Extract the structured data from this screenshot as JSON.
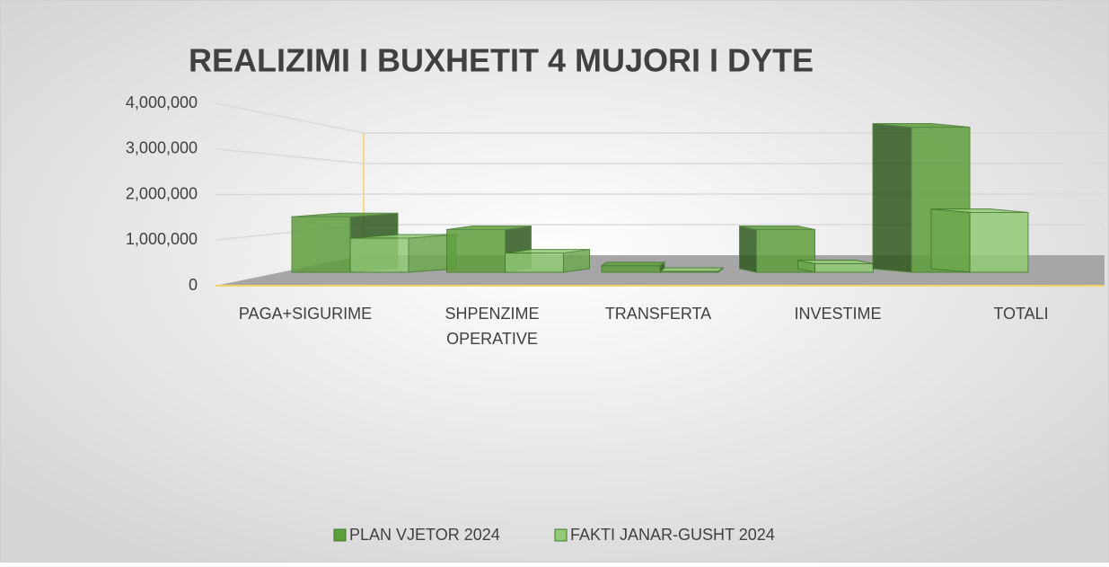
{
  "chart_data": {
    "type": "bar3d",
    "title": "REALIZIMI  I  BUXHETIT 4 MUJORI I DYTE",
    "categories": [
      "PAGA+SIGURIME",
      "SHPENZIME OPERATIVE",
      "TRANSFERTA",
      "INVESTIME",
      "TOTALI"
    ],
    "series": [
      {
        "name": "PLAN VJETOR 2024",
        "color": "#5f9e3c",
        "values": [
          1300000,
          1000000,
          150000,
          1000000,
          3400000
        ]
      },
      {
        "name": "FAKTI JANAR-GUSHT 2024",
        "color": "#93cb76",
        "values": [
          800000,
          450000,
          20000,
          200000,
          1400000
        ]
      }
    ],
    "ylim": [
      0,
      4000000
    ],
    "yticks": [
      0,
      {
        "value": 1000000,
        "label": "1,000,000"
      },
      {
        "value": 2000000,
        "label": "2,000,000"
      },
      {
        "value": 3000000,
        "label": "3,000,000"
      },
      {
        "value": 4000000,
        "label": "4,000,000"
      }
    ],
    "grid": true,
    "legend": "bottom"
  }
}
